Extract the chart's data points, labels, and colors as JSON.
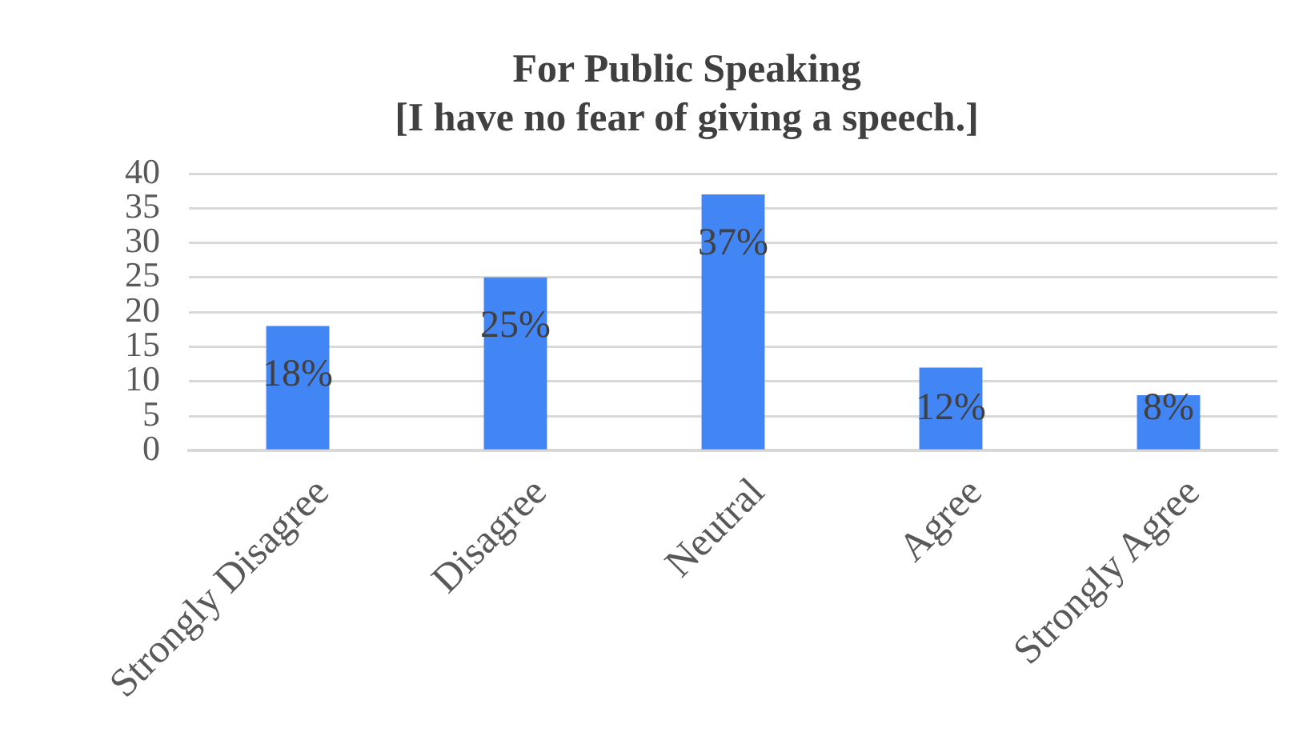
{
  "chart_data": {
    "type": "bar",
    "title": "For Public Speaking",
    "subtitle": "[I have no fear of giving a speech.]",
    "categories": [
      "Strongly Disagree",
      "Disagree",
      "Neutral",
      "Agree",
      "Strongly Agree"
    ],
    "values": [
      18,
      25,
      37,
      12,
      8
    ],
    "value_labels": [
      "18%",
      "25%",
      "37%",
      "12%",
      "8%"
    ],
    "color": "#4285f4",
    "ylim": [
      0,
      40
    ],
    "yticks": [
      0,
      5,
      10,
      15,
      20,
      25,
      30,
      35,
      40
    ],
    "grid": "y"
  }
}
